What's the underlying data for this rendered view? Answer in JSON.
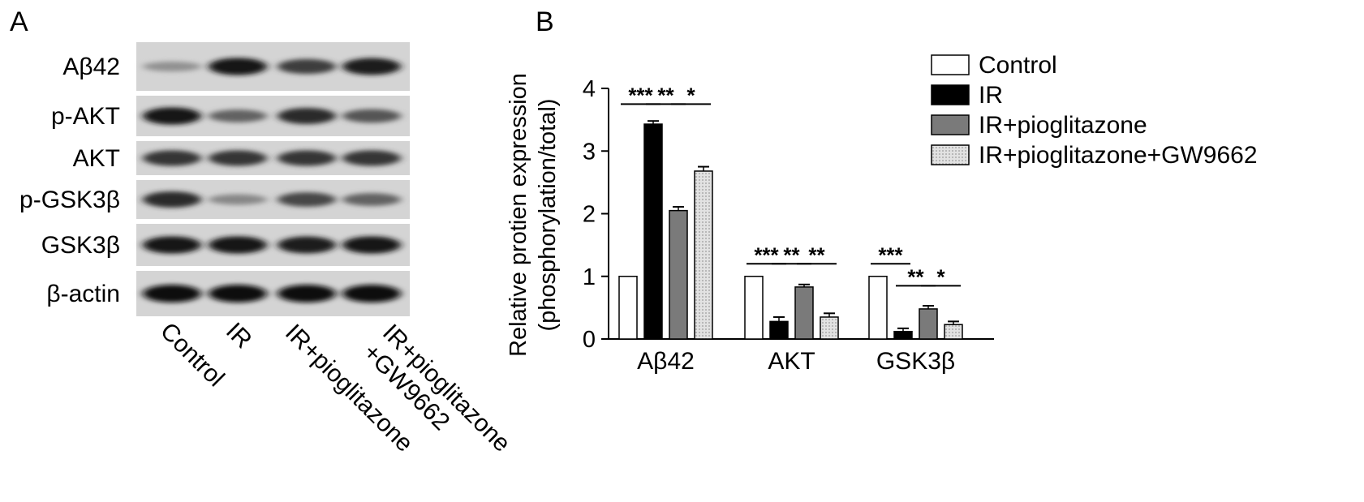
{
  "panel_a": {
    "letter": "A",
    "rows": [
      {
        "label": "Aβ42",
        "intensity": [
          0.3,
          0.95,
          0.75,
          0.92
        ]
      },
      {
        "label": "p-AKT",
        "intensity": [
          0.95,
          0.55,
          0.85,
          0.62
        ]
      },
      {
        "label": "AKT",
        "intensity": [
          0.8,
          0.8,
          0.8,
          0.8
        ]
      },
      {
        "label": "p-GSK3β",
        "intensity": [
          0.85,
          0.35,
          0.7,
          0.55
        ]
      },
      {
        "label": "GSK3β",
        "intensity": [
          0.95,
          0.95,
          0.92,
          0.95
        ]
      },
      {
        "label": "β-actin",
        "intensity": [
          1.0,
          1.0,
          1.0,
          1.0
        ]
      }
    ],
    "lanes": [
      [
        "Control"
      ],
      [
        "IR"
      ],
      [
        "IR+pioglitazone"
      ],
      [
        "IR+pioglitazone",
        "+GW9662"
      ]
    ]
  },
  "panel_b": {
    "letter": "B",
    "chart_data": {
      "type": "bar",
      "title": "",
      "ylabel_lines": [
        "Relative protien expression",
        "(phosphorylation/total)"
      ],
      "xlabel": "",
      "ylim": [
        0,
        4
      ],
      "yticks": [
        "0",
        "1",
        "2",
        "3",
        "4"
      ],
      "categories": [
        "Aβ42",
        "AKT",
        "GSK3β"
      ],
      "series": [
        {
          "name": "Control",
          "color": "#ffffff",
          "pattern": "none",
          "values": [
            1.0,
            1.0,
            1.0
          ],
          "errors": [
            0.0,
            0.0,
            0.0
          ]
        },
        {
          "name": "IR",
          "color": "#000000",
          "pattern": "none",
          "values": [
            3.43,
            0.28,
            0.12
          ],
          "errors": [
            0.05,
            0.07,
            0.05
          ]
        },
        {
          "name": "IR+pioglitazone",
          "color": "#7a7a7a",
          "pattern": "none",
          "values": [
            2.05,
            0.83,
            0.48
          ],
          "errors": [
            0.06,
            0.04,
            0.05
          ]
        },
        {
          "name": "IR+pioglitazone+GW9662",
          "color": "#d6d6d6",
          "pattern": "dots",
          "values": [
            2.68,
            0.35,
            0.23
          ],
          "errors": [
            0.07,
            0.06,
            0.05
          ]
        }
      ],
      "significance": [
        {
          "category": 0,
          "from": 0,
          "to": 1,
          "label": "***",
          "y": 3.75
        },
        {
          "category": 0,
          "from": 1,
          "to": 2,
          "label": "**",
          "y": 3.75
        },
        {
          "category": 0,
          "from": 2,
          "to": 3,
          "label": "*",
          "y": 3.75
        },
        {
          "category": 1,
          "from": 0,
          "to": 1,
          "label": "***",
          "y": 1.2
        },
        {
          "category": 1,
          "from": 1,
          "to": 2,
          "label": "**",
          "y": 1.2
        },
        {
          "category": 1,
          "from": 2,
          "to": 3,
          "label": "**",
          "y": 1.2
        },
        {
          "category": 2,
          "from": 0,
          "to": 1,
          "label": "***",
          "y": 1.2
        },
        {
          "category": 2,
          "from": 1,
          "to": 2,
          "label": "**",
          "y": 0.85
        },
        {
          "category": 2,
          "from": 2,
          "to": 3,
          "label": "*",
          "y": 0.85
        }
      ],
      "legend_position": "top-right"
    }
  }
}
